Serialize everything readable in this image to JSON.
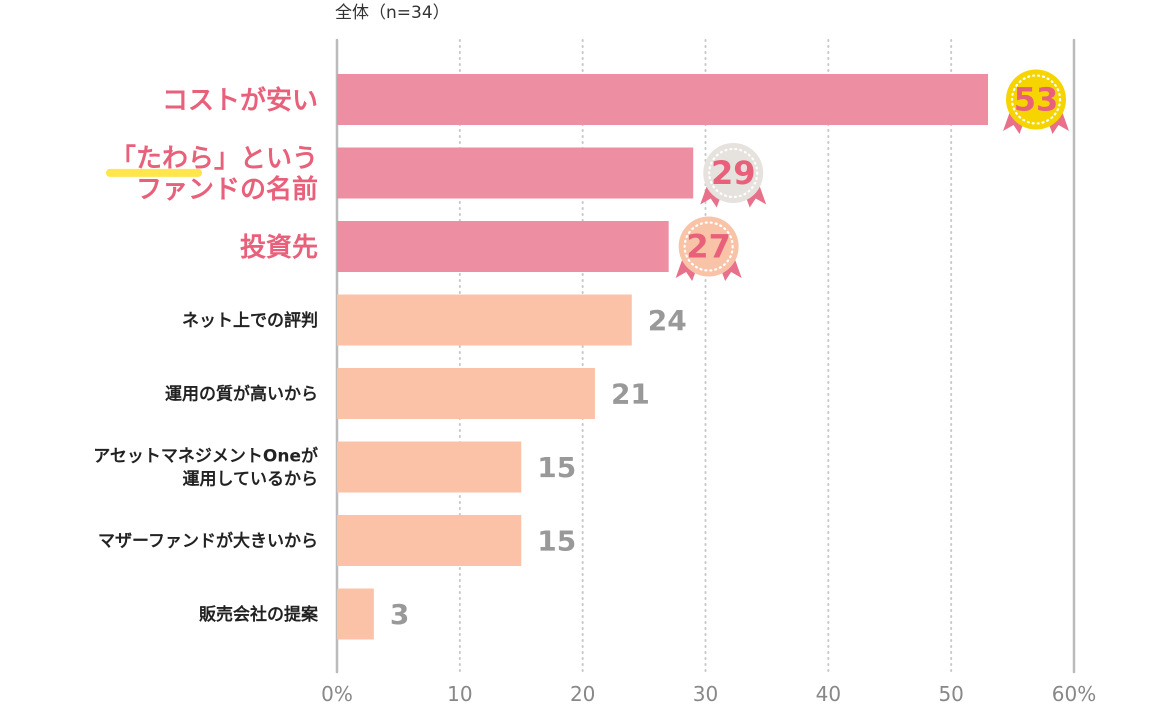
{
  "chart_data": {
    "type": "bar",
    "orientation": "horizontal",
    "title": "全体（n=34）",
    "categories": [
      [
        "コストが安い"
      ],
      [
        "「たわら」という",
        "ファンドの名前"
      ],
      [
        "投資先"
      ],
      [
        "ネット上での評判"
      ],
      [
        "運用の質が高いから"
      ],
      [
        "アセットマネジメントOneが",
        "運用しているから"
      ],
      [
        "マザーファンドが大きいから"
      ],
      [
        "販売会社の提案"
      ]
    ],
    "values": [
      53,
      29,
      27,
      24,
      21,
      15,
      15,
      3
    ],
    "value_labels": [
      "53",
      "29",
      "27",
      "24",
      "21",
      "15",
      "15",
      "3"
    ],
    "highlighted_top": 3,
    "xlim": [
      0,
      60
    ],
    "xticks": [
      0,
      10,
      20,
      30,
      40,
      50,
      60
    ],
    "xtick_labels": [
      "0%",
      "10",
      "20",
      "30",
      "40",
      "50",
      "60%"
    ],
    "grid": "vertical dotted",
    "colors": {
      "highlight_bar": "#ee8ea2",
      "normal_bar": "#fcc2a8",
      "highlight_text": "#e8607a",
      "normal_value_text": "#999999",
      "normal_label_text": "#222222",
      "underline": "#ffe64d",
      "badge_gold": "#f5d400",
      "badge_silver": "#e6e2de",
      "badge_bronze": "#f9c3a8",
      "ribbon": "#e8708a",
      "axis": "#bbbbbb",
      "grid": "#c8c8c8"
    }
  }
}
